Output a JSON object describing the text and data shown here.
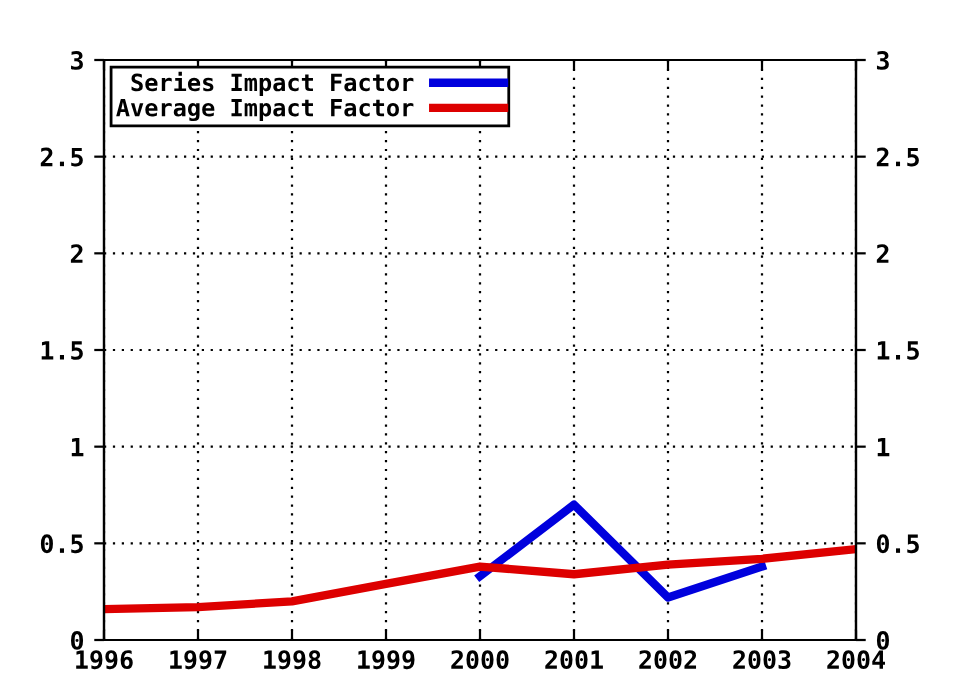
{
  "chart_data": {
    "type": "line",
    "x": [
      1996,
      1997,
      1998,
      1999,
      2000,
      2001,
      2002,
      2003,
      2004
    ],
    "series": [
      {
        "name": "Series Impact Factor",
        "color": "#0000dd",
        "values": [
          null,
          null,
          null,
          null,
          0.33,
          0.7,
          0.22,
          0.38,
          null
        ]
      },
      {
        "name": "Average Impact Factor",
        "color": "#dd0000",
        "values": [
          0.16,
          0.17,
          0.2,
          0.29,
          0.38,
          0.34,
          0.39,
          0.42,
          0.47
        ]
      }
    ],
    "xlim": [
      1996,
      2004
    ],
    "xticks": [
      1996,
      1997,
      1998,
      1999,
      2000,
      2001,
      2002,
      2003,
      2004
    ],
    "ylim": [
      0,
      3
    ],
    "yticks": [
      0,
      0.5,
      1,
      1.5,
      2,
      2.5,
      3
    ],
    "y2lim": [
      0,
      3
    ],
    "y2ticks": [
      0,
      0.5,
      1,
      1.5,
      2,
      2.5,
      3
    ],
    "grid": true,
    "legend": "top left",
    "marker": "none",
    "line_style": "solid"
  }
}
